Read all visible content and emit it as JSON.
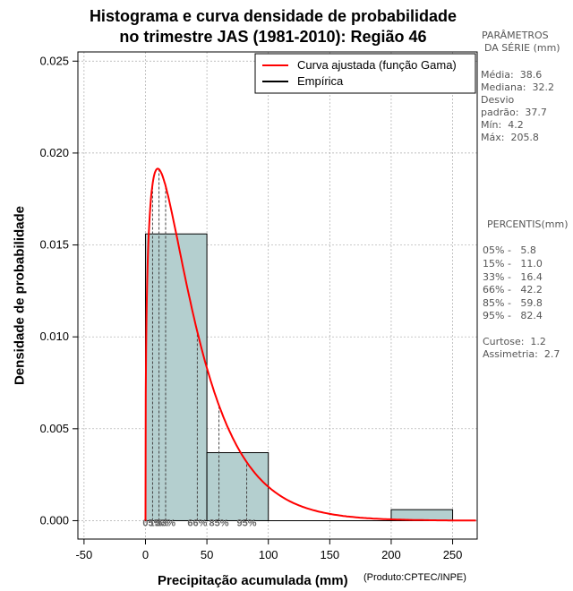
{
  "title_line1": "Histograma e curva densidade de probabilidade",
  "title_line2": "no trimestre JAS (1981-2010): Região 46",
  "xlabel": "Precipitação acumulada (mm)",
  "credit": "(Produto:CPTEC/INPE)",
  "ylabel": "Densidade de probabilidade",
  "params": {
    "heading1": "PARÂMETROS",
    "heading2": "DA SÉRIE (mm)",
    "media": "Média:  38.6",
    "mediana": "Mediana:  32.2",
    "desvio1": "Desvio",
    "desvio2": "padrão:  37.7",
    "min": "Mín:  4.2",
    "max": "Máx:  205.8"
  },
  "percentis": {
    "heading": "PERCENTIS(mm)",
    "p05": "05% -   5.8",
    "p15": "15% -   11.0",
    "p33": "33% -   16.4",
    "p66": "66% -   42.2",
    "p85": "85% -   59.8",
    "p95": "95% -   82.4"
  },
  "curtose": "Curtose:  1.2",
  "assimetria": "Assimetria:  2.7",
  "colors": {
    "curve": "#ff0000",
    "bars": "#b4cfcf",
    "grid": "#aaaaaa"
  },
  "chart_data": {
    "type": "bar",
    "title": "Histograma e curva densidade de probabilidade no trimestre JAS (1981-2010): Região 46",
    "xlabel": "Precipitação acumulada (mm)",
    "ylabel": "Densidade de probabilidade",
    "xlim": [
      -55,
      270
    ],
    "ylim": [
      -0.001,
      0.0255
    ],
    "x_ticks": [
      -50,
      0,
      50,
      100,
      150,
      200,
      250
    ],
    "x_tick_labels": [
      "-50",
      "0",
      "50",
      "100",
      "150",
      "200",
      "250"
    ],
    "y_ticks": [
      0.0,
      0.005,
      0.01,
      0.015,
      0.02,
      0.025
    ],
    "y_tick_labels": [
      "0.000",
      "0.005",
      "0.010",
      "0.015",
      "0.020",
      "0.025"
    ],
    "grid": true,
    "legend": {
      "position": "top-right",
      "entries": [
        {
          "label": "Curva ajustada (função Gama)",
          "color": "#ff0000"
        },
        {
          "label": "Empírica",
          "color": "#000000"
        }
      ]
    },
    "histogram": [
      {
        "from": 0,
        "to": 50,
        "density": 0.0156
      },
      {
        "from": 50,
        "to": 100,
        "density": 0.0037
      },
      {
        "from": 100,
        "to": 150,
        "density": 0.0
      },
      {
        "from": 150,
        "to": 200,
        "density": 0.0
      },
      {
        "from": 200,
        "to": 250,
        "density": 0.0006
      }
    ],
    "gamma_fit": {
      "shape": 1.35,
      "scale": 28.6,
      "min": 0,
      "max": 270
    },
    "percentile_markers": [
      {
        "label": "05%",
        "x": 5.8
      },
      {
        "label": "15%",
        "x": 11.0
      },
      {
        "label": "33%",
        "x": 16.4
      },
      {
        "label": "66%",
        "x": 42.2
      },
      {
        "label": "85%",
        "x": 59.8
      },
      {
        "label": "95%",
        "x": 82.4
      }
    ]
  }
}
